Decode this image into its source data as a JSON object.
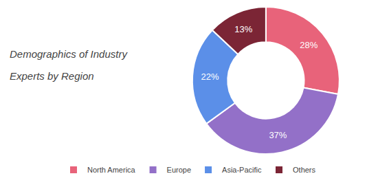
{
  "chart_data": {
    "type": "pie",
    "title": "Demographics of Industry",
    "subtitle": "Experts by Region",
    "categories": [
      "North America",
      "Europe",
      "Asia-Pacific",
      "Others"
    ],
    "values": [
      28,
      37,
      22,
      13
    ],
    "value_labels": [
      "28%",
      "37%",
      "22%",
      "13%"
    ],
    "colors": [
      "#E8637A",
      "#9370C8",
      "#5B8FE8",
      "#7B2535"
    ],
    "data_labels": true,
    "legend": "bottom"
  }
}
